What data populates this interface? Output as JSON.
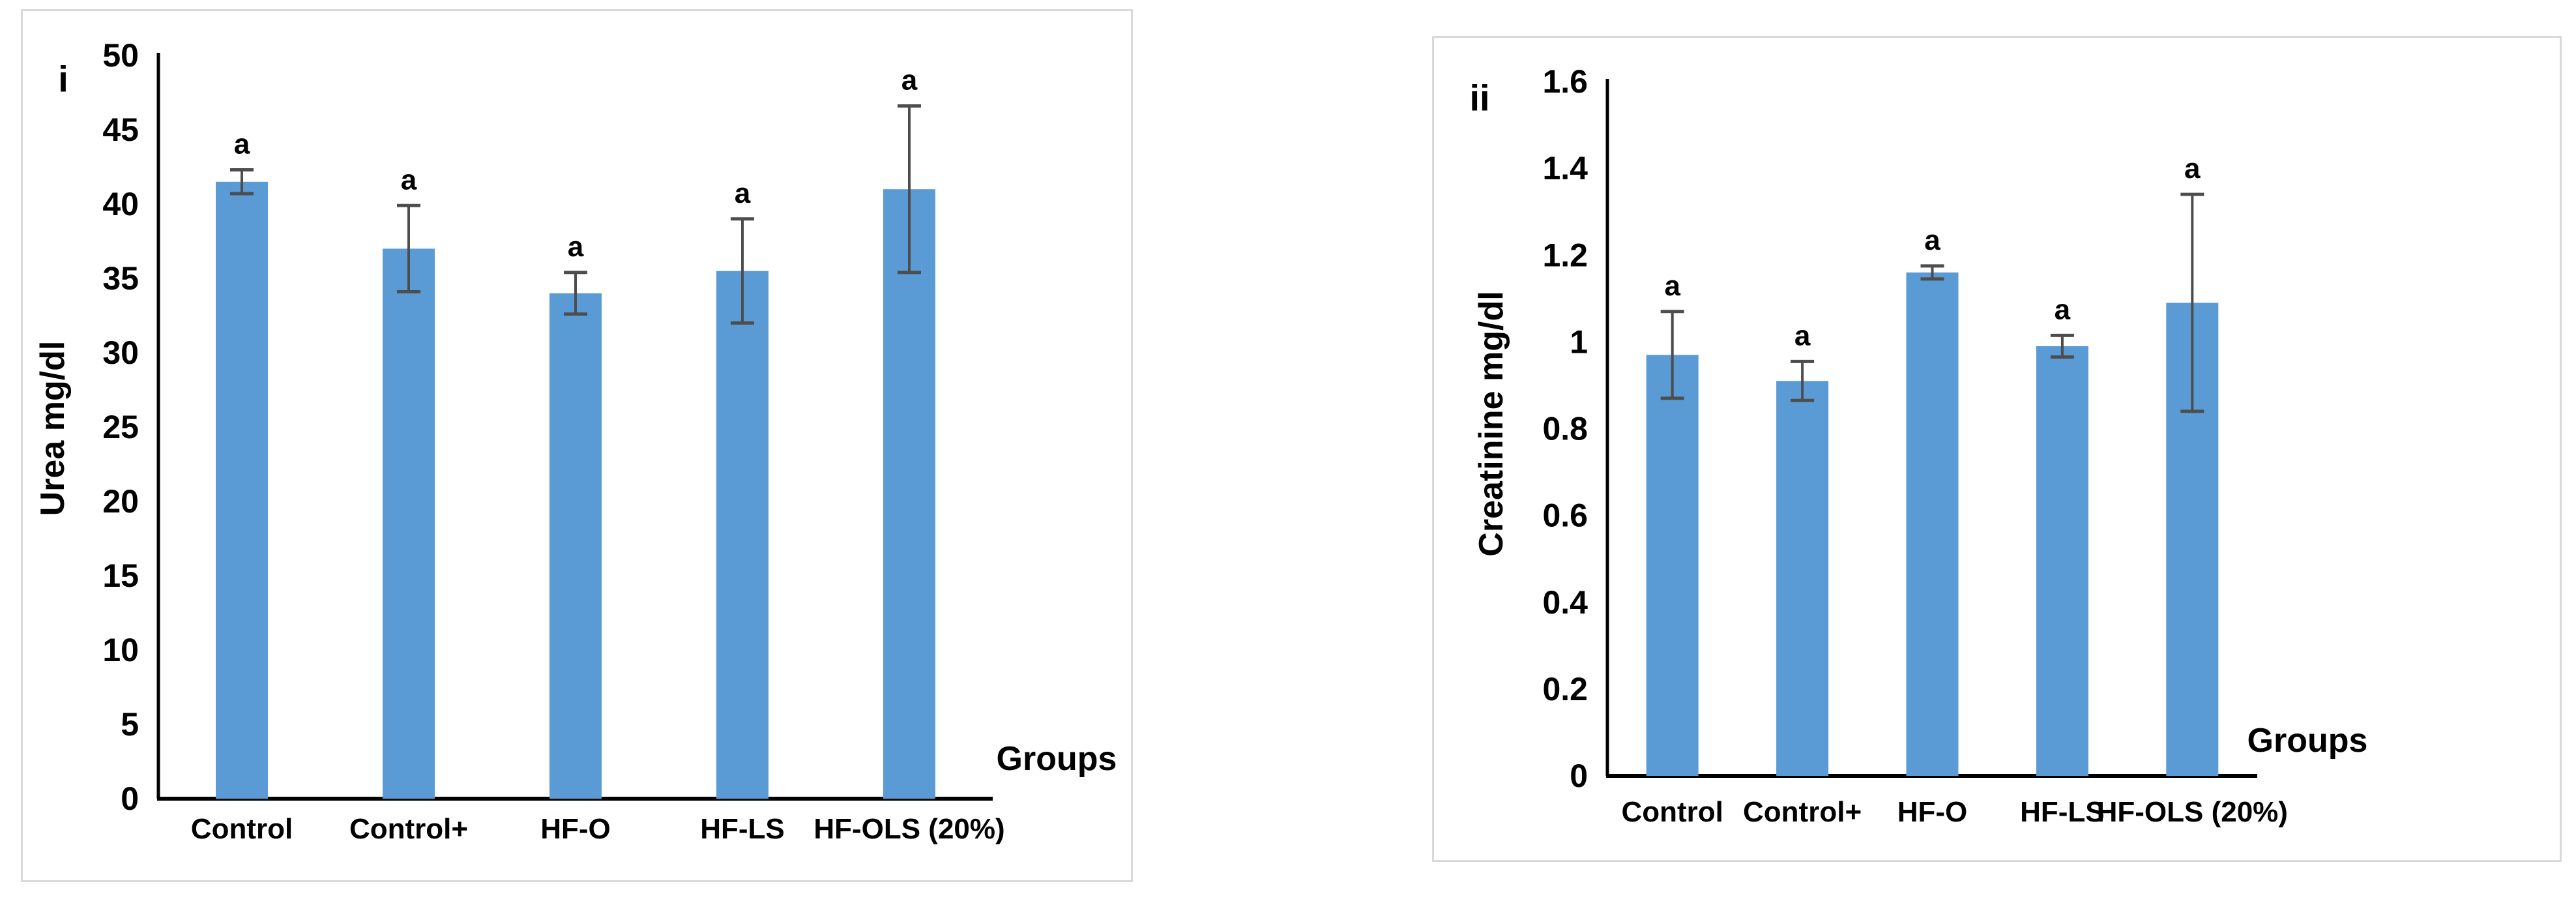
{
  "figure": {
    "panels": [
      {
        "panel_label": "i"
      },
      {
        "panel_label": "ii"
      }
    ]
  },
  "colors": {
    "bar_fill": "#5B9BD5",
    "error_bar": "#4d4d4d",
    "axis_line": "#000000",
    "panel_border": "#d9d9d9",
    "text": "#000000",
    "background": "#ffffff"
  },
  "chart_data": [
    {
      "type": "bar",
      "panel_label": "i",
      "title": "",
      "categories": [
        "Control",
        "Control+",
        "HF-O",
        "HF-LS",
        "HF-OLS (20%)"
      ],
      "values": [
        41.5,
        37,
        34,
        35.5,
        41
      ],
      "error_bars": [
        0.8,
        2.9,
        1.4,
        3.5,
        5.6
      ],
      "point_labels": [
        "a",
        "a",
        "a",
        "a",
        "a"
      ],
      "xlabel": "Groups",
      "ylabel": "Urea mg/dl",
      "ylim": [
        0,
        50
      ],
      "ytick_step": 5,
      "ytick_labels": [
        "0",
        "5",
        "10",
        "15",
        "20",
        "25",
        "30",
        "35",
        "40",
        "45",
        "50"
      ],
      "grid": false,
      "legend_position": "none",
      "bar_color": "#5B9BD5"
    },
    {
      "type": "bar",
      "panel_label": "ii",
      "title": "",
      "categories": [
        "Control",
        "Control+",
        "HF-O",
        "HF-LS",
        "HF-OLS (20%)"
      ],
      "values": [
        0.97,
        0.91,
        1.16,
        0.99,
        1.09
      ],
      "error_bars": [
        0.1,
        0.045,
        0.015,
        0.025,
        0.25
      ],
      "point_labels": [
        "a",
        "a",
        "a",
        "a",
        "a"
      ],
      "xlabel": "Groups",
      "ylabel": "Creatinine mg/dl",
      "ylim": [
        0,
        1.6
      ],
      "ytick_step": 0.2,
      "ytick_labels": [
        "0",
        "0.2",
        "0.4",
        "0.6",
        "0.8",
        "1",
        "1.2",
        "1.4",
        "1.6"
      ],
      "grid": false,
      "legend_position": "none",
      "bar_color": "#5B9BD5"
    }
  ]
}
